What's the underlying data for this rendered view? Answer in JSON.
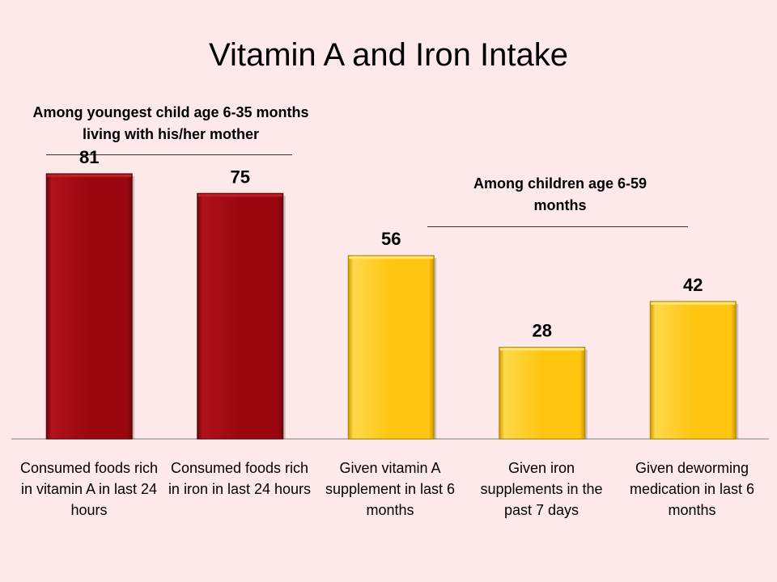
{
  "title": "Vitamin A and Iron Intake",
  "groups": [
    {
      "label": "Among youngest child age 6-35 months living with his/her mother"
    },
    {
      "label": "Among children age 6-59 months"
    }
  ],
  "colors": {
    "background": "#fde9ea",
    "group1_bar": "#9a0710",
    "group2_bar": "#ffc510",
    "axis": "#a6a6a6"
  },
  "chart_data": {
    "type": "bar",
    "title": "Vitamin A and Iron Intake",
    "categories": [
      "Consumed foods rich in vitamin A in last 24 hours",
      "Consumed foods rich in iron in last 24 hours",
      "Given vitamin A supplement in last 6 months",
      "Given iron supplements in the past 7 days",
      "Given deworming medication in last 6 months"
    ],
    "values": [
      81,
      75,
      56,
      28,
      42
    ],
    "bar_groups": [
      0,
      0,
      1,
      1,
      1
    ],
    "ylim": [
      0,
      100
    ],
    "grid": false,
    "legend": "none",
    "xlabel": "",
    "ylabel": ""
  }
}
